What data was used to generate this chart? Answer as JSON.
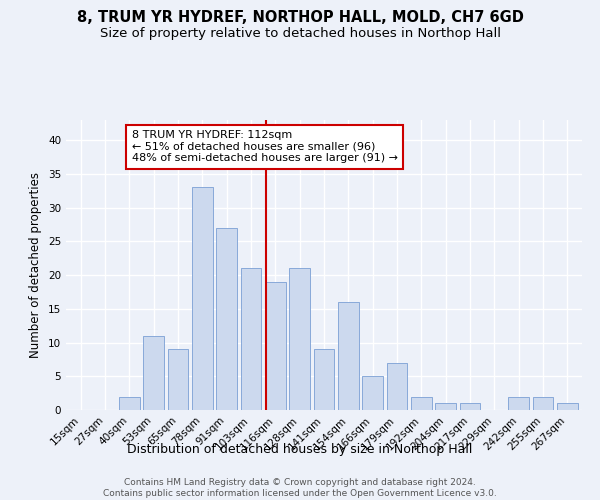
{
  "title1": "8, TRUM YR HYDREF, NORTHOP HALL, MOLD, CH7 6GD",
  "title2": "Size of property relative to detached houses in Northop Hall",
  "xlabel": "Distribution of detached houses by size in Northop Hall",
  "ylabel": "Number of detached properties",
  "bar_labels": [
    "15sqm",
    "27sqm",
    "40sqm",
    "53sqm",
    "65sqm",
    "78sqm",
    "91sqm",
    "103sqm",
    "116sqm",
    "128sqm",
    "141sqm",
    "154sqm",
    "166sqm",
    "179sqm",
    "192sqm",
    "204sqm",
    "217sqm",
    "229sqm",
    "242sqm",
    "255sqm",
    "267sqm"
  ],
  "bar_values": [
    0,
    0,
    2,
    11,
    9,
    33,
    27,
    21,
    19,
    21,
    9,
    16,
    5,
    7,
    2,
    1,
    1,
    0,
    2,
    2,
    1
  ],
  "bar_color": "#ccd9ee",
  "bar_edgecolor": "#7a9fd4",
  "vline_color": "#cc0000",
  "annotation_text": "8 TRUM YR HYDREF: 112sqm\n← 51% of detached houses are smaller (96)\n48% of semi-detached houses are larger (91) →",
  "annotation_box_edgecolor": "#cc0000",
  "ylim": [
    0,
    43
  ],
  "yticks": [
    0,
    5,
    10,
    15,
    20,
    25,
    30,
    35,
    40
  ],
  "footnote": "Contains HM Land Registry data © Crown copyright and database right 2024.\nContains public sector information licensed under the Open Government Licence v3.0.",
  "bg_color": "#edf1f9",
  "grid_color": "#ffffff",
  "title_fontsize": 10.5,
  "subtitle_fontsize": 9.5,
  "label_fontsize": 8.5,
  "tick_fontsize": 7.5,
  "footnote_fontsize": 6.5,
  "ann_fontsize": 8.0
}
